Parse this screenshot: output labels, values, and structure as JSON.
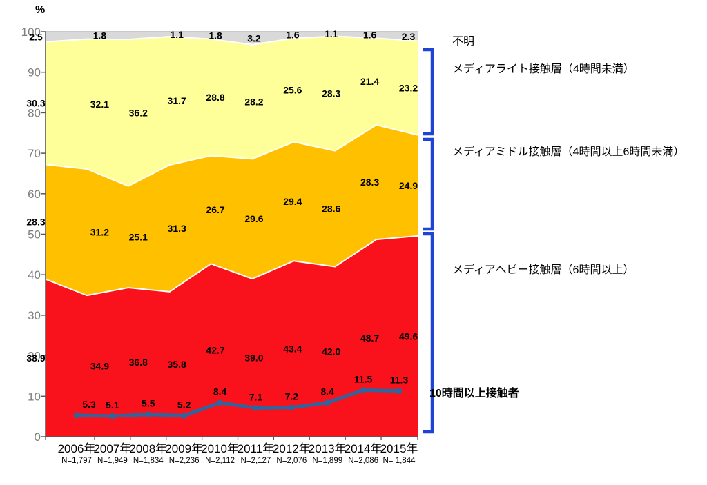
{
  "page": {
    "background": "#FFFFFF"
  },
  "chart_data": {
    "type": "area",
    "subtype": "stacked-area-with-line",
    "title": "",
    "unit_label": "%",
    "xlabel": "",
    "ylabel": "%",
    "ylim": [
      0,
      100
    ],
    "y_tick_step": 10,
    "grid": false,
    "legend_position": "right-annotations",
    "categories": [
      "2006年",
      "2007年",
      "2008年",
      "2009年",
      "2010年",
      "2011年",
      "2012年",
      "2013年",
      "2014年",
      "2015年"
    ],
    "sample_sizes": [
      "N=1,797",
      "N=1,949",
      "N=1,834",
      "N=2,236",
      "N=2,112",
      "N=2,127",
      "N=2,076",
      "N=1,899",
      "N=2,086",
      "N= 1,844"
    ],
    "series": [
      {
        "id": "heavy",
        "name": "メディアヘビー接触層（6時間以上）",
        "type": "area",
        "color": "#F9121B",
        "values": [
          38.9,
          34.9,
          36.8,
          35.8,
          42.7,
          39.0,
          43.4,
          42.0,
          48.7,
          49.6
        ]
      },
      {
        "id": "middle",
        "name": "メディアミドル接触層（4時間以上6時間未満）",
        "type": "area",
        "color": "#FFC000",
        "values": [
          28.3,
          31.2,
          25.1,
          31.3,
          26.7,
          29.6,
          29.4,
          28.6,
          28.3,
          24.9
        ]
      },
      {
        "id": "light",
        "name": "メディアライト接触層（4時間未満）",
        "type": "area",
        "color": "#FFFF99",
        "values": [
          30.3,
          32.1,
          36.2,
          31.7,
          28.8,
          28.2,
          25.6,
          28.3,
          21.4,
          23.2
        ]
      },
      {
        "id": "unknown",
        "name": "不明",
        "type": "area",
        "color": "#D9D9D9",
        "values": [
          2.5,
          1.8,
          1.9,
          1.1,
          1.8,
          3.2,
          1.6,
          1.1,
          1.6,
          2.3
        ],
        "label_overrides": [
          "2.5",
          "1.8",
          "",
          "1.1",
          "1.8",
          "3.2",
          "1.6",
          "1.1",
          "1.6",
          "2.3"
        ]
      },
      {
        "id": "over10h",
        "name": "10時間以上接触者",
        "type": "line",
        "color": "#31639C",
        "values": [
          5.3,
          5.1,
          5.5,
          5.2,
          8.4,
          7.1,
          7.2,
          8.4,
          11.5,
          11.3
        ]
      }
    ],
    "annotations": [
      {
        "text": "不明"
      },
      {
        "text": "メディアライト接触層（4時間未満）"
      },
      {
        "text": "メディアミドル接触層（4時間以上6時間未満）"
      },
      {
        "text": "メディアヘビー接触層（6時間以上）"
      },
      {
        "text": "10時間以上接触者"
      }
    ],
    "colors": {
      "bracket": "#1E44D5",
      "axis": "#595959",
      "y_tick_label": "#7F7F7F",
      "separator": "#FFFFFF",
      "top_border": "#A6A6A6",
      "label_text": "#000000"
    }
  }
}
